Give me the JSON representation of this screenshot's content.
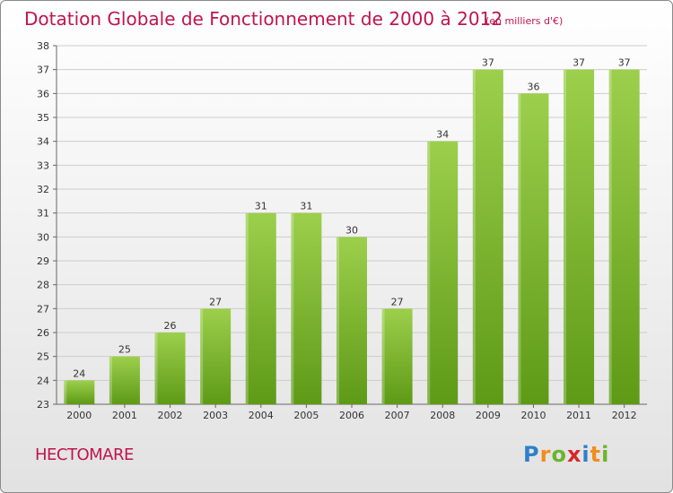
{
  "title": "Dotation Globale de Fonctionnement de 2000 à 2012",
  "unit_note": "(en milliers d'€)",
  "commune": "HECTOMARE",
  "logo": {
    "letters": [
      "P",
      "r",
      "o",
      "x",
      "i",
      "t",
      "i"
    ],
    "colors": [
      "#2f80c8",
      "#f28c1c",
      "#6ab52c",
      "#d8262c",
      "#2f80c8",
      "#f28c1c",
      "#6ab52c"
    ]
  },
  "colors": {
    "bar_top": "#9ccf4c",
    "bar_bottom": "#5e9a16",
    "grid": "#cccccc",
    "text_accent": "#c0144e"
  },
  "chart_data": {
    "type": "bar",
    "categories": [
      "2000",
      "2001",
      "2002",
      "2003",
      "2004",
      "2005",
      "2006",
      "2007",
      "2008",
      "2009",
      "2010",
      "2011",
      "2012"
    ],
    "values": [
      24,
      25,
      26,
      27,
      31,
      31,
      30,
      27,
      34,
      37,
      36,
      37,
      37
    ],
    "value_labels": [
      "24",
      "25",
      "26",
      "27",
      "31",
      "31",
      "30",
      "27",
      "34",
      "37",
      "36",
      "37",
      "37"
    ],
    "yticks": [
      "23",
      "24",
      "25",
      "26",
      "27",
      "28",
      "29",
      "30",
      "31",
      "32",
      "33",
      "34",
      "35",
      "36",
      "37",
      "38"
    ],
    "ylim": [
      23,
      38
    ],
    "grid": true,
    "title": "Dotation Globale de Fonctionnement de 2000 à 2012",
    "xlabel": "",
    "ylabel": ""
  }
}
